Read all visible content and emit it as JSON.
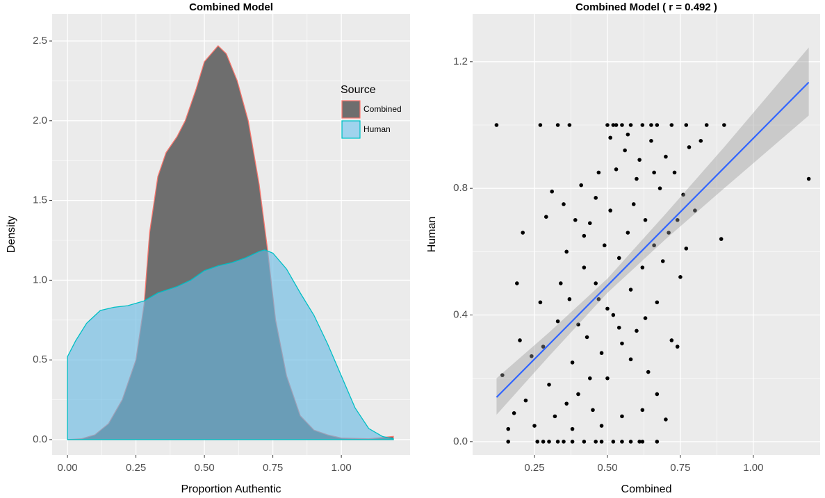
{
  "chart_data": [
    {
      "type": "density",
      "title": "Combined Model",
      "xlabel": "Proportion Authentic",
      "ylabel": "Density",
      "xlim": [
        -0.056,
        1.251
      ],
      "ylim": [
        -0.096,
        2.67
      ],
      "xticks": [
        {
          "value": 0,
          "label": "0.00"
        },
        {
          "value": 0.25,
          "label": "0.25"
        },
        {
          "value": 0.5,
          "label": "0.50"
        },
        {
          "value": 0.75,
          "label": "0.75"
        },
        {
          "value": 1,
          "label": "1.00"
        }
      ],
      "yticks": [
        {
          "value": 0,
          "label": "0.0"
        },
        0.5,
        {
          "value": 1,
          "label": "1.0"
        },
        1.5,
        {
          "value": 2,
          "label": "2.0"
        },
        2.5
      ],
      "grid": true,
      "legend_title": "Source",
      "legend": "top-right",
      "series": [
        {
          "name": "Combined",
          "color": "#6e6e6e",
          "line_color": "#f8766d",
          "opacity": 1,
          "x": [
            0,
            0.05,
            0.1,
            0.15,
            0.2,
            0.25,
            0.28,
            0.3,
            0.33,
            0.36,
            0.4,
            0.43,
            0.47,
            0.5,
            0.55,
            0.58,
            0.62,
            0.66,
            0.7,
            0.73,
            0.76,
            0.8,
            0.85,
            0.9,
            0.95,
            1,
            1.1,
            1.19
          ],
          "values": [
            0,
            0.005,
            0.03,
            0.1,
            0.25,
            0.5,
            0.85,
            1.3,
            1.65,
            1.8,
            1.9,
            2.0,
            2.2,
            2.37,
            2.47,
            2.42,
            2.25,
            2.0,
            1.6,
            1.2,
            0.75,
            0.4,
            0.15,
            0.06,
            0.03,
            0.01,
            0.005,
            0.02
          ]
        },
        {
          "name": "Human",
          "color": "#69bae3",
          "line_color": "#00bfc4",
          "opacity": 0.63,
          "x": [
            0,
            0.03,
            0.07,
            0.12,
            0.17,
            0.22,
            0.28,
            0.33,
            0.4,
            0.45,
            0.5,
            0.55,
            0.6,
            0.65,
            0.7,
            0.72,
            0.75,
            0.8,
            0.85,
            0.9,
            0.95,
            1,
            1.05,
            1.1,
            1.15,
            1.19
          ],
          "values": [
            0.52,
            0.62,
            0.73,
            0.81,
            0.83,
            0.84,
            0.87,
            0.92,
            0.96,
            1.0,
            1.06,
            1.09,
            1.11,
            1.14,
            1.18,
            1.19,
            1.17,
            1.07,
            0.92,
            0.78,
            0.6,
            0.4,
            0.2,
            0.07,
            0.02,
            0.005
          ]
        }
      ]
    },
    {
      "type": "scatter",
      "title": "Combined Model ( r =  0.492 )",
      "xlabel": "Combined",
      "ylabel": "Human",
      "xlim": [
        0.038,
        1.229
      ],
      "ylim": [
        -0.042,
        1.351
      ],
      "xticks": [
        0.25,
        {
          "value": 0.5,
          "label": "0.50"
        },
        0.75,
        {
          "value": 1,
          "label": "1.00"
        }
      ],
      "yticks": [
        {
          "value": 0,
          "label": "0.0"
        },
        0.4,
        0.8,
        1.2
      ],
      "grid": true,
      "color": "#000000",
      "x": [
        0.12,
        0.27,
        0.33,
        0.37,
        0.5,
        0.52,
        0.53,
        0.55,
        0.58,
        0.62,
        0.65,
        0.67,
        0.72,
        0.77,
        0.84,
        0.9,
        0.16,
        0.26,
        0.28,
        0.3,
        0.33,
        0.35,
        0.38,
        0.42,
        0.46,
        0.48,
        0.52,
        0.55,
        0.58,
        0.61,
        0.62,
        0.67,
        1.19,
        0.89,
        0.14,
        0.16,
        0.19,
        0.21,
        0.18,
        0.22,
        0.25,
        0.27,
        0.29,
        0.31,
        0.33,
        0.35,
        0.36,
        0.38,
        0.39,
        0.4,
        0.41,
        0.42,
        0.43,
        0.44,
        0.45,
        0.46,
        0.47,
        0.48,
        0.49,
        0.5,
        0.51,
        0.52,
        0.53,
        0.54,
        0.55,
        0.56,
        0.57,
        0.58,
        0.59,
        0.6,
        0.61,
        0.62,
        0.63,
        0.64,
        0.65,
        0.66,
        0.67,
        0.68,
        0.69,
        0.7,
        0.71,
        0.72,
        0.73,
        0.74,
        0.75,
        0.76,
        0.77,
        0.78,
        0.8,
        0.82,
        0.62,
        0.55,
        0.48,
        0.38,
        0.32,
        0.3,
        0.36,
        0.44,
        0.28,
        0.24,
        0.2,
        0.42,
        0.46,
        0.5,
        0.54,
        0.58,
        0.63,
        0.67,
        0.7,
        0.74,
        0.47,
        0.51,
        0.57,
        0.6,
        0.66,
        0.34,
        0.37,
        0.4
      ],
      "values": [
        1,
        1,
        1,
        1,
        1,
        1,
        1,
        1,
        1,
        1,
        1,
        1,
        1,
        1,
        1,
        1,
        0,
        0,
        0,
        0,
        0,
        0,
        0,
        0,
        0,
        0,
        0,
        0,
        0,
        0,
        0,
        0,
        0.83,
        0.64,
        0.21,
        0.04,
        0.5,
        0.66,
        0.09,
        0.13,
        0.05,
        0.44,
        0.71,
        0.79,
        0.38,
        0.75,
        0.6,
        0.25,
        0.7,
        0.15,
        0.81,
        0.55,
        0.33,
        0.69,
        0.1,
        0.77,
        0.45,
        0.28,
        0.62,
        0.2,
        0.73,
        0.4,
        0.86,
        0.58,
        0.31,
        0.92,
        0.66,
        0.48,
        0.75,
        0.35,
        0.89,
        0.55,
        0.7,
        0.22,
        0.95,
        0.62,
        0.44,
        0.8,
        0.57,
        0.9,
        0.66,
        0.32,
        0.85,
        0.7,
        0.52,
        0.78,
        0.61,
        0.93,
        0.73,
        0.95,
        0.1,
        0.08,
        0.05,
        0.04,
        0.08,
        0.18,
        0.12,
        0.2,
        0.3,
        0.27,
        0.32,
        0.65,
        0.5,
        0.42,
        0.36,
        0.26,
        0.39,
        0.15,
        0.07,
        0.3,
        0.85,
        0.96,
        0.97,
        0.83,
        0.85,
        0.5,
        0.45,
        0.37
      ],
      "fit": {
        "color": "#3366ff",
        "band_color": "#999999",
        "x": [
          0.12,
          0.3,
          0.5,
          0.7,
          0.9,
          1.19
        ],
        "values": [
          0.14,
          0.307,
          0.493,
          0.679,
          0.865,
          1.135
        ],
        "lower": [
          0.085,
          0.27,
          0.47,
          0.64,
          0.8,
          1.03
        ],
        "upper": [
          0.2,
          0.345,
          0.515,
          0.72,
          0.93,
          1.245
        ]
      }
    }
  ]
}
